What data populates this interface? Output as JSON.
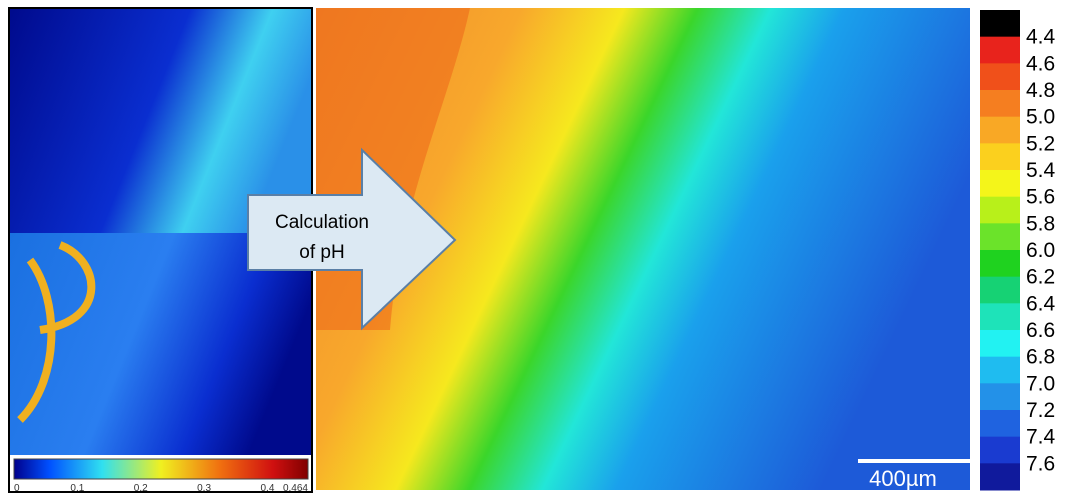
{
  "arrow_label": [
    "Calculation",
    "of pH"
  ],
  "scale_bar": "400µm",
  "colorbar": {
    "labels": [
      "4.4",
      "4.6",
      "4.8",
      "5.0",
      "5.2",
      "5.4",
      "5.6",
      "5.8",
      "6.0",
      "6.2",
      "6.4",
      "6.6",
      "6.8",
      "7.0",
      "7.2",
      "7.4",
      "7.6"
    ],
    "colors": [
      "#000000",
      "#e8231c",
      "#f0501a",
      "#f57e20",
      "#f9a825",
      "#fbd01e",
      "#f4f51a",
      "#b8f01a",
      "#6be32a",
      "#1fd21f",
      "#16d274",
      "#1ee3b9",
      "#22f2f2",
      "#1fbcf0",
      "#2391e8",
      "#1f63e0",
      "#1a3bd0",
      "#101a9c"
    ]
  },
  "small_colorbar": {
    "ticks": [
      0,
      0.1,
      0.2,
      0.3,
      0.4,
      0.464
    ]
  }
}
